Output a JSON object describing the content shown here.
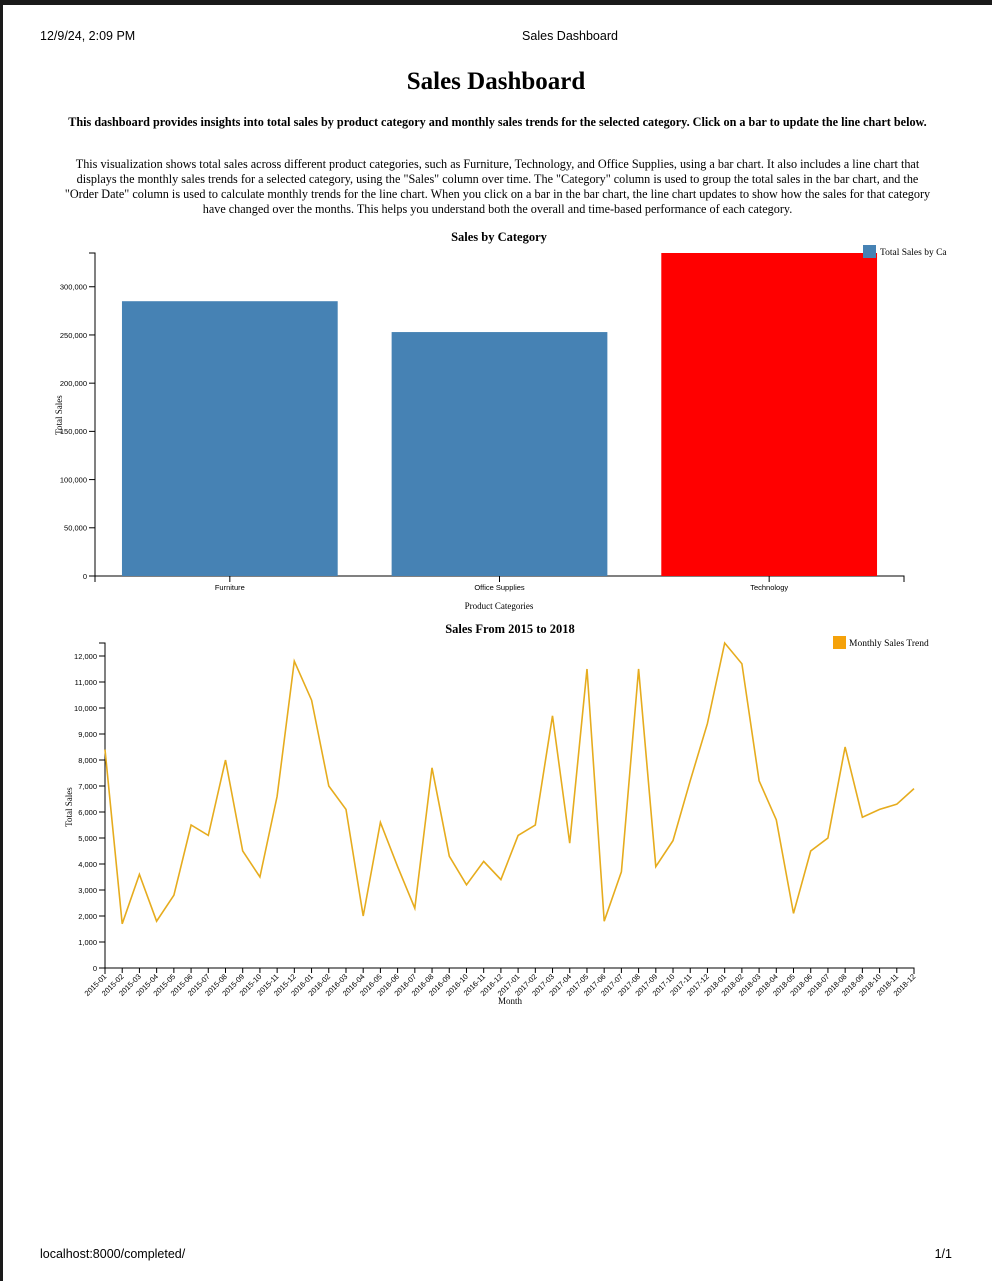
{
  "print_header": {
    "datetime": "12/9/24, 2:09 PM",
    "title": "Sales Dashboard",
    "url": "localhost:8000/completed/",
    "page": "1/1"
  },
  "page_title": "Sales Dashboard",
  "intro": "This dashboard provides insights into total sales by product category and monthly sales trends for the selected category. Click on a bar to update the line chart below.",
  "description": "This visualization shows total sales across different product categories, such as Furniture, Technology, and Office Supplies, using a bar chart. It also includes a line chart that displays the monthly sales trends for a selected category, using the \"Sales\" column over time. The \"Category\" column is used to group the total sales in the bar chart, and the \"Order Date\" column is used to calculate monthly trends for the line chart. When you click on a bar in the bar chart, the line chart updates to show how the sales for that category have changed over the months. This helps you understand both the overall and time-based performance of each category.",
  "chart_data": [
    {
      "type": "bar",
      "title": "Sales by Category",
      "xlabel": "Product Categories",
      "ylabel": "Total Sales",
      "categories": [
        "Furniture",
        "Office Supplies",
        "Technology"
      ],
      "values": [
        285000,
        253000,
        335000
      ],
      "bar_colors": [
        "#4682b4",
        "#4682b4",
        "#ff0000"
      ],
      "selected": "Technology",
      "ylim": [
        0,
        335000
      ],
      "yticks": [
        0,
        50000,
        100000,
        150000,
        200000,
        250000,
        300000
      ],
      "legend": {
        "label": "Total Sales by Ca",
        "color": "#4682b4",
        "position": "top-right"
      }
    },
    {
      "type": "line",
      "title": "Sales From 2015 to 2018",
      "xlabel": "Month",
      "ylabel": "Total Sales",
      "color": "#e6ac1e",
      "legend": {
        "label": "Monthly Sales Trend",
        "color": "#f5a20a",
        "position": "top-right"
      },
      "ylim": [
        0,
        12500
      ],
      "yticks": [
        0,
        1000,
        2000,
        3000,
        4000,
        5000,
        6000,
        7000,
        8000,
        9000,
        10000,
        11000,
        12000
      ],
      "x": [
        "2015-01",
        "2015-02",
        "2015-03",
        "2015-04",
        "2015-05",
        "2015-06",
        "2015-07",
        "2015-08",
        "2015-09",
        "2015-10",
        "2015-11",
        "2015-12",
        "2016-01",
        "2016-02",
        "2016-03",
        "2016-04",
        "2016-05",
        "2016-06",
        "2016-07",
        "2016-08",
        "2016-09",
        "2016-10",
        "2016-11",
        "2016-12",
        "2017-01",
        "2017-02",
        "2017-03",
        "2017-04",
        "2017-05",
        "2017-06",
        "2017-07",
        "2017-08",
        "2017-09",
        "2017-10",
        "2017-11",
        "2017-12",
        "2018-01",
        "2018-02",
        "2018-03",
        "2018-04",
        "2018-05",
        "2018-06",
        "2018-07",
        "2018-08",
        "2018-09",
        "2018-10",
        "2018-11",
        "2018-12"
      ],
      "values": [
        8400,
        1700,
        3600,
        1800,
        2800,
        5500,
        5100,
        8000,
        4500,
        3500,
        6600,
        11800,
        10300,
        7000,
        6100,
        2000,
        5600,
        3900,
        2300,
        7700,
        4300,
        3200,
        4100,
        3400,
        5100,
        5500,
        9700,
        4800,
        11500,
        1800,
        3700,
        11500,
        3900,
        4900,
        7200,
        9400,
        12500,
        11700,
        7200,
        5700,
        2100,
        4500,
        5000,
        8500,
        5800,
        6100,
        6300,
        6900
      ]
    }
  ]
}
